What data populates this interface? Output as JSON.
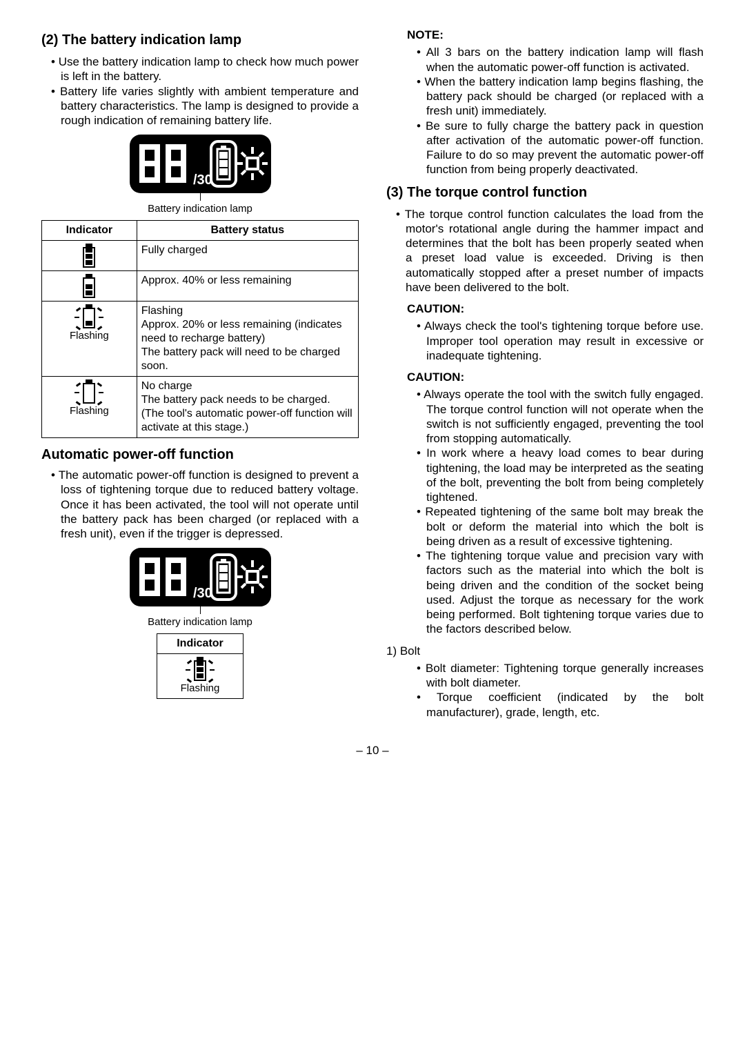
{
  "left": {
    "h2": "(2)  The battery indication lamp",
    "intro": [
      "Use the battery indication lamp to check how much power is left in the battery.",
      "Battery life varies slightly with ambient temperature and battery characteristics. The lamp is designed to provide a rough indication of remaining battery life."
    ],
    "panel_caption": "Battery indication lamp",
    "table": {
      "col1": "Indicator",
      "col2": "Battery status",
      "rows": [
        {
          "bars": 3,
          "flash": false,
          "label": "",
          "status": "Fully charged"
        },
        {
          "bars": 2,
          "flash": false,
          "label": "",
          "status": "Approx. 40% or less remaining"
        },
        {
          "bars": 1,
          "flash": true,
          "label": "Flashing",
          "status": "Flashing\nApprox. 20% or less remaining (indicates need to recharge battery)\nThe battery pack will need to be charged soon."
        },
        {
          "bars": 0,
          "flash": true,
          "label": "Flashing",
          "status": "No charge\nThe battery pack needs to be charged.\n(The tool's automatic power-off function will activate at this stage.)"
        }
      ]
    },
    "h3_auto": "Automatic power-off function",
    "auto_text": [
      "The automatic power-off function is designed to prevent a loss of tightening torque due to reduced battery voltage. Once it has been activated, the tool will not operate until the battery pack has been charged (or replaced with a fresh unit), even if the trigger is depressed."
    ],
    "ind_only": {
      "header": "Indicator",
      "label": "Flashing"
    }
  },
  "right": {
    "note_label": "NOTE:",
    "note_items": [
      "All 3 bars on the battery indication lamp will flash when the automatic power-off function is activated.",
      "When the battery indication lamp begins flashing, the battery pack should be charged (or replaced with a fresh unit) immediately.",
      "Be sure to fully charge the battery pack in question after activation of the automatic power-off function. Failure to do so may prevent the automatic power-off function from being properly deactivated."
    ],
    "h3_torque": "(3)  The torque control function",
    "torque_intro": [
      "The torque control function calculates the load from the motor's rotational angle during the hammer impact and determines that the bolt has been properly seated when a preset load value is exceeded. Driving is then automatically stopped after a preset number of impacts have been delivered to the bolt."
    ],
    "caution1_label": "CAUTION:",
    "caution1_items": [
      "Always check the tool's tightening torque before use. Improper tool operation may result in excessive or inadequate tightening."
    ],
    "caution2_label": "CAUTION:",
    "caution2_items": [
      "Always operate the tool with the switch fully engaged. The torque control function will not operate when the switch is not sufficiently engaged, preventing the tool from stopping automatically.",
      "In work where a heavy load comes to bear during tightening, the load may be interpreted as the seating of the bolt, preventing the bolt from being completely tightened.",
      "Repeated tightening of the same bolt may break the bolt or deform the material into which the bolt is being driven as a result of excessive tightening.",
      "The tightening torque value and precision vary with factors such as the material into which the bolt is being driven and the condition of the socket being used. Adjust the torque as necessary for the work being performed. Bolt tightening torque varies due to the factors described below."
    ],
    "numbered": {
      "n1": "1) Bolt",
      "n1_items": [
        "Bolt diameter: Tightening torque generally increases with bolt diameter.",
        "Torque coefficient (indicated by the bolt manufacturer), grade, length, etc."
      ]
    }
  },
  "page_num": "– 10 –",
  "panel_digits": "/30"
}
